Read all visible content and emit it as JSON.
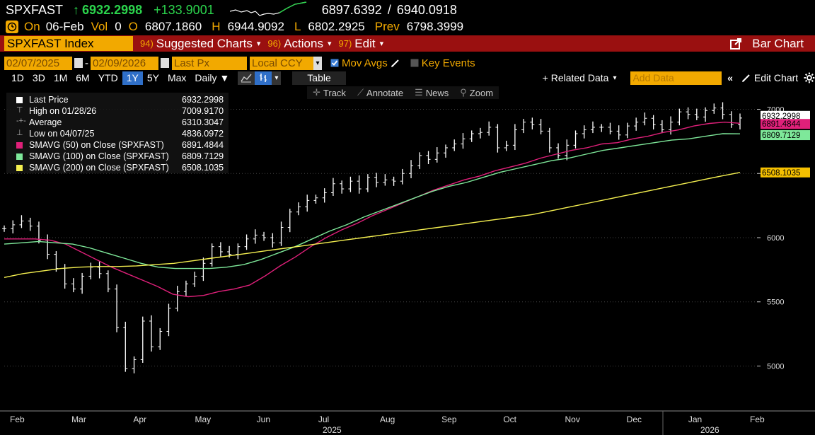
{
  "ticker": {
    "symbol": "SPXFAST",
    "arrow": "↑",
    "last": "6932.2998",
    "change": "+133.9001",
    "bid": "6897.6392",
    "slash": "/",
    "ask": "6940.0918"
  },
  "ohlc": {
    "on_label": "On",
    "date": "06-Feb",
    "vol_label": "Vol",
    "vol": "0",
    "o_label": "O",
    "open": "6807.1860",
    "h_label": "H",
    "high": "6944.9092",
    "l_label": "L",
    "low": "6802.2925",
    "prev_label": "Prev",
    "prev": "6798.3999"
  },
  "functions": {
    "security": "SPXFAST Index",
    "menus": [
      {
        "num": "94)",
        "label": "Suggested Charts"
      },
      {
        "num": "96)",
        "label": "Actions"
      },
      {
        "num": "97)",
        "label": "Edit"
      }
    ],
    "bar_chart": "Bar Chart"
  },
  "settings": {
    "start_date": "02/07/2025",
    "dash": "-",
    "end_date": "02/09/2026",
    "field": "Last Px",
    "currency": "Local CCY",
    "mov_avgs": "Mov Avgs",
    "key_events": "Key Events"
  },
  "periods": {
    "items": [
      "1D",
      "3D",
      "1M",
      "6M",
      "YTD",
      "1Y",
      "5Y",
      "Max"
    ],
    "selected": "1Y",
    "frequency": "Daily",
    "table": "Table",
    "related_data": "+ Related Data",
    "add_data_placeholder": "Add Data",
    "edit_chart": "Edit Chart"
  },
  "tools": [
    "Track",
    "Annotate",
    "News",
    "Zoom"
  ],
  "legend": [
    {
      "label": "Last Price",
      "value": "6932.2998",
      "color": "#ffffff",
      "glyph": ""
    },
    {
      "label": "High on 01/28/26",
      "value": "7009.9170",
      "color": "",
      "glyph": "⊤"
    },
    {
      "label": "Average",
      "value": "6310.3047",
      "color": "",
      "glyph": "-+-"
    },
    {
      "label": "Low on 04/07/25",
      "value": "4836.0972",
      "color": "",
      "glyph": "⊥"
    },
    {
      "label": "SMAVG (50)  on Close (SPXFAST)",
      "value": "6891.4844",
      "color": "#e0207a",
      "glyph": ""
    },
    {
      "label": "SMAVG (100)  on Close (SPXFAST)",
      "value": "6809.7129",
      "color": "#7ee89a",
      "glyph": ""
    },
    {
      "label": "SMAVG (200)  on Close (SPXFAST)",
      "value": "6508.1035",
      "color": "#f5f050",
      "glyph": ""
    }
  ],
  "chart_data": {
    "type": "line",
    "x_labels": [
      "Feb",
      "Mar",
      "Apr",
      "May",
      "Jun",
      "Jul",
      "Aug",
      "Sep",
      "Oct",
      "Nov",
      "Dec",
      "Jan",
      "Feb"
    ],
    "year_labels": [
      "2025",
      "2026"
    ],
    "y_ticks": [
      5000,
      5500,
      6000,
      6500,
      7000
    ],
    "ylim": [
      4650,
      7080
    ],
    "price_tags": [
      {
        "value": "6932.2998",
        "bg": "#ffffff",
        "fg": "#000000"
      },
      {
        "value": "6891.4844",
        "bg": "#e0207a",
        "fg": "#000000"
      },
      {
        "value": "6809.7129",
        "bg": "#7ee89a",
        "fg": "#000000"
      },
      {
        "value": "6508.1035",
        "bg": "#f5c000",
        "fg": "#000000"
      }
    ],
    "series": [
      {
        "name": "Last Price",
        "color": "#ffffff",
        "values": [
          6070,
          6100,
          6130,
          6090,
          5980,
          5870,
          5760,
          5640,
          5600,
          5700,
          5770,
          5720,
          5600,
          5300,
          4980,
          5050,
          5350,
          5150,
          5270,
          5450,
          5580,
          5640,
          5700,
          5800,
          5930,
          5890,
          5870,
          5930,
          5990,
          6020,
          6000,
          5960,
          6080,
          6200,
          6240,
          6290,
          6310,
          6350,
          6420,
          6380,
          6440,
          6380,
          6470,
          6430,
          6450,
          6440,
          6500,
          6560,
          6640,
          6610,
          6660,
          6700,
          6730,
          6770,
          6810,
          6820,
          6860,
          6700,
          6720,
          6840,
          6900,
          6880,
          6830,
          6700,
          6640,
          6720,
          6810,
          6840,
          6860,
          6860,
          6830,
          6800,
          6870,
          6900,
          6930,
          6880,
          6840,
          6900,
          6980,
          6960,
          6940,
          6990,
          7010,
          6960,
          6880,
          6932
        ]
      },
      {
        "name": "SMAVG (50)",
        "color": "#e0207a",
        "values": [
          5990,
          5990,
          5990,
          5980,
          5950,
          5890,
          5830,
          5770,
          5720,
          5670,
          5620,
          5560,
          5540,
          5550,
          5580,
          5600,
          5630,
          5700,
          5780,
          5850,
          5930,
          6000,
          6060,
          6110,
          6170,
          6220,
          6270,
          6320,
          6370,
          6410,
          6450,
          6480,
          6520,
          6550,
          6580,
          6620,
          6650,
          6680,
          6700,
          6730,
          6740,
          6770,
          6790,
          6820,
          6840,
          6870,
          6890,
          6900,
          6891
        ]
      },
      {
        "name": "SMAVG (100)",
        "color": "#7ee89a",
        "values": [
          5950,
          5960,
          5970,
          5960,
          5950,
          5920,
          5880,
          5840,
          5800,
          5770,
          5760,
          5760,
          5760,
          5770,
          5790,
          5830,
          5880,
          5930,
          5990,
          6050,
          6100,
          6160,
          6210,
          6260,
          6310,
          6360,
          6400,
          6430,
          6470,
          6510,
          6540,
          6570,
          6600,
          6620,
          6650,
          6680,
          6700,
          6720,
          6740,
          6760,
          6770,
          6790,
          6810,
          6809
        ]
      },
      {
        "name": "SMAVG (200)",
        "color": "#f5f050",
        "values": [
          5690,
          5720,
          5740,
          5760,
          5770,
          5775,
          5775,
          5780,
          5790,
          5800,
          5820,
          5840,
          5860,
          5880,
          5900,
          5920,
          5940,
          5960,
          5980,
          6000,
          6020,
          6040,
          6060,
          6080,
          6100,
          6120,
          6140,
          6160,
          6180,
          6210,
          6240,
          6270,
          6300,
          6330,
          6360,
          6390,
          6420,
          6450,
          6480,
          6508
        ]
      }
    ]
  }
}
